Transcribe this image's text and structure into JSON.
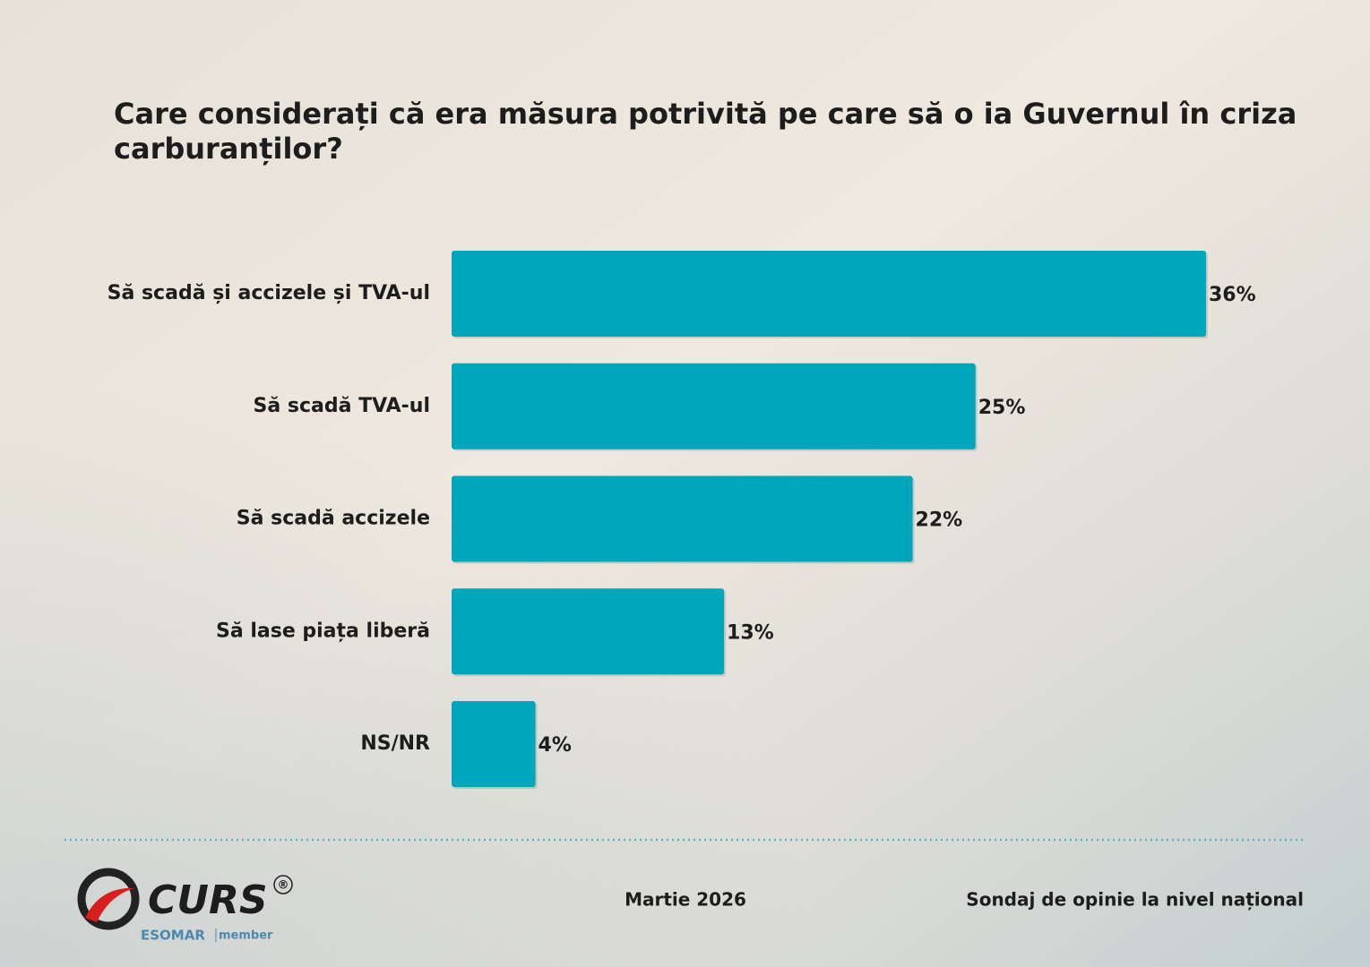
{
  "chart_data": {
    "type": "bar",
    "orientation": "horizontal",
    "title": "Care considerați că era măsura potrivită pe care să o ia Guvernul în criza carburanților?",
    "categories": [
      "Să scadă și accizele și TVA-ul",
      "Să scadă TVA-ul",
      "Să scadă accizele",
      "Să lase piața liberă",
      "NS/NR"
    ],
    "values": [
      36,
      25,
      22,
      13,
      4
    ],
    "value_labels": [
      "36%",
      "25%",
      "22%",
      "13%",
      "4%"
    ],
    "color": "#00a6b9"
  },
  "footer": {
    "date": "Martie 2026",
    "note": "Sondaj de opinie la nivel național",
    "logo": {
      "name": "CURS",
      "registered": "®",
      "esomar": "ESOMAR",
      "member": "member"
    }
  }
}
